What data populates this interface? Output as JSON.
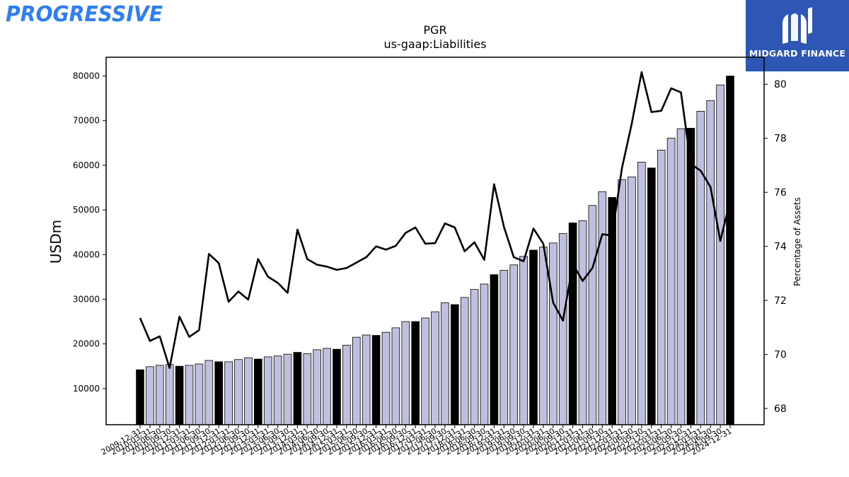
{
  "logos": {
    "left_text": "PROGRESSIVE",
    "right_text": "MIDGARD FINANCE"
  },
  "colors": {
    "annual_bar": "#000000",
    "quarter_bar": "#bfbfe0",
    "line": "#000000",
    "midgard_blue": "#2d56b5",
    "progressive_blue": "#2d7ff9"
  },
  "chart_data": {
    "type": "bar",
    "title": "PGR",
    "subtitle": "us-gaap:Liabilities",
    "ylabel": "USDm",
    "y2label": "Percentage of Assets",
    "ylim": [
      1900,
      84200
    ],
    "y2lim": [
      67.4,
      81.0
    ],
    "yticks": [
      10000,
      20000,
      30000,
      40000,
      50000,
      60000,
      70000,
      80000
    ],
    "y2ticks": [
      68,
      70,
      72,
      74,
      76,
      78,
      80
    ],
    "categories": [
      "2009-12-31",
      "2010-03-31",
      "2010-06-30",
      "2010-09-30",
      "2010-12-31",
      "2011-03-31",
      "2011-06-30",
      "2011-09-30",
      "2011-12-31",
      "2012-03-31",
      "2012-06-30",
      "2012-09-30",
      "2012-12-31",
      "2013-03-31",
      "2013-06-30",
      "2013-09-30",
      "2013-12-31",
      "2014-03-31",
      "2014-06-30",
      "2014-09-30",
      "2014-12-31",
      "2015-03-31",
      "2015-06-30",
      "2015-09-30",
      "2015-12-31",
      "2016-03-31",
      "2016-06-30",
      "2016-09-30",
      "2016-12-31",
      "2017-03-31",
      "2017-06-30",
      "2017-09-30",
      "2017-12-31",
      "2018-03-31",
      "2018-06-30",
      "2018-09-30",
      "2018-12-31",
      "2019-03-31",
      "2019-06-30",
      "2019-09-30",
      "2019-12-31",
      "2020-03-31",
      "2020-06-30",
      "2020-09-30",
      "2020-12-31",
      "2021-03-31",
      "2021-06-30",
      "2021-09-30",
      "2021-12-31",
      "2022-03-31",
      "2022-06-30",
      "2022-09-30",
      "2022-12-31",
      "2023-03-31",
      "2023-06-30",
      "2023-09-30",
      "2023-12-31",
      "2024-03-31",
      "2024-06-30",
      "2024-09-30",
      "2024-12-31"
    ],
    "series": [
      {
        "kind": "bar",
        "values": [
          14200,
          14900,
          15200,
          15400,
          15000,
          15200,
          15500,
          16300,
          16000,
          16000,
          16500,
          16900,
          16600,
          17100,
          17300,
          17700,
          18100,
          17800,
          18700,
          19000,
          18800,
          19700,
          21500,
          22000,
          21900,
          22600,
          23600,
          25000,
          25000,
          25800,
          27200,
          29200,
          28800,
          30400,
          32200,
          33400,
          35500,
          36500,
          37700,
          39600,
          41000,
          41700,
          42600,
          44700,
          47100,
          47600,
          51000,
          54100,
          52800,
          56800,
          57400,
          60700,
          59400,
          63400,
          66100,
          68200,
          68300,
          72100,
          74500,
          78000,
          80000
        ]
      },
      {
        "kind": "line",
        "axis": "right",
        "values": [
          71.35,
          70.5,
          70.67,
          69.5,
          71.4,
          70.65,
          70.9,
          73.72,
          73.38,
          71.95,
          72.33,
          72.03,
          73.53,
          72.88,
          72.65,
          72.28,
          74.62,
          73.53,
          73.32,
          73.25,
          73.13,
          73.2,
          73.4,
          73.6,
          74.0,
          73.88,
          74.02,
          74.5,
          74.7,
          74.1,
          74.12,
          74.85,
          74.7,
          73.82,
          74.15,
          73.5,
          76.3,
          74.72,
          73.6,
          73.45,
          74.66,
          74.1,
          71.92,
          71.25,
          73.35,
          72.72,
          73.2,
          74.45,
          74.4,
          76.9,
          78.55,
          80.45,
          78.97,
          79.02,
          79.85,
          79.7,
          77.05,
          76.8,
          76.2,
          74.2,
          75.7
        ]
      }
    ],
    "annual_bar_indices": [
      0,
      4,
      8,
      12,
      16,
      20,
      24,
      28,
      32,
      36,
      40,
      44,
      48,
      52,
      56,
      60
    ]
  }
}
